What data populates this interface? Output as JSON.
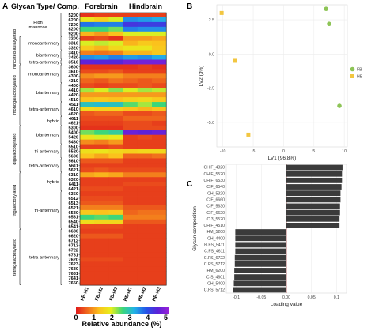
{
  "heatmap": {
    "panel": "A",
    "header_rowlabel": "Glycan Type/ Comp.",
    "header_groups": [
      "Forebrain",
      "Hindbrain"
    ],
    "columns": [
      "FB-M1",
      "FB-M2",
      "FB-M3",
      "HB-M1",
      "HB-M2",
      "HB-M3"
    ],
    "rows": [
      "5200",
      "6200",
      "7200",
      "8200",
      "9200",
      "3200",
      "3310",
      "3320",
      "3410",
      "3420",
      "3510",
      "3600",
      "3610",
      "4300",
      "4310",
      "4400",
      "4410",
      "4420",
      "4510",
      "4511",
      "4610",
      "4620",
      "4611",
      "4621",
      "5300",
      "5400",
      "5420",
      "5430",
      "5510",
      "5520",
      "5600",
      "5610",
      "5611",
      "5621",
      "6310",
      "6320",
      "6411",
      "6421",
      "6350",
      "6512",
      "6513",
      "6521",
      "6530",
      "6531",
      "6540",
      "6541",
      "6630",
      "6620",
      "6712",
      "6713",
      "6722",
      "6731",
      "7620",
      "7623",
      "7630",
      "7631",
      "7641",
      "7650"
    ],
    "values": [
      [
        0.2,
        0.3,
        0.3,
        0.3,
        0.3,
        0.3
      ],
      [
        1.8,
        1.5,
        2.0,
        3.5,
        3.4,
        3.3
      ],
      [
        3.7,
        3.6,
        3.6,
        4.3,
        4.2,
        4.2
      ],
      [
        2.6,
        2.6,
        2.4,
        3.6,
        3.5,
        3.5
      ],
      [
        1.2,
        1.0,
        1.3,
        2.0,
        2.0,
        2.0
      ],
      [
        0.3,
        0.4,
        0.2,
        1.0,
        1.0,
        1.1
      ],
      [
        2.0,
        2.1,
        2.0,
        1.2,
        1.4,
        1.3
      ],
      [
        1.4,
        1.2,
        1.6,
        1.8,
        1.8,
        1.4
      ],
      [
        0.8,
        0.7,
        0.8,
        1.2,
        1.2,
        1.4
      ],
      [
        3.5,
        3.4,
        3.6,
        3.4,
        3.5,
        3.3
      ],
      [
        4.6,
        4.5,
        4.5,
        4.8,
        4.8,
        4.8
      ],
      [
        0.2,
        0.2,
        0.2,
        0.2,
        0.3,
        0.2
      ],
      [
        0.4,
        0.4,
        0.5,
        0.3,
        0.3,
        0.3
      ],
      [
        0.9,
        1.0,
        1.0,
        0.8,
        0.8,
        0.8
      ],
      [
        0.6,
        0.5,
        0.7,
        0.6,
        0.5,
        0.6
      ],
      [
        0.4,
        0.3,
        0.4,
        0.4,
        0.5,
        0.4
      ],
      [
        2.2,
        2.0,
        2.3,
        2.0,
        2.2,
        2.1
      ],
      [
        1.0,
        1.0,
        1.0,
        1.0,
        1.0,
        1.0
      ],
      [
        1.3,
        1.4,
        1.3,
        1.5,
        1.6,
        1.4
      ],
      [
        3.0,
        3.1,
        3.0,
        2.5,
        2.2,
        2.6
      ],
      [
        1.6,
        1.5,
        1.5,
        1.3,
        1.2,
        1.3
      ],
      [
        0.5,
        0.6,
        0.6,
        0.4,
        0.4,
        0.5
      ],
      [
        0.4,
        0.4,
        0.4,
        0.6,
        0.6,
        0.6
      ],
      [
        0.3,
        0.3,
        0.3,
        0.4,
        0.4,
        0.3
      ],
      [
        0.2,
        0.2,
        0.2,
        0.4,
        0.4,
        0.4
      ],
      [
        2.4,
        2.6,
        2.8,
        4.7,
        4.6,
        4.7
      ],
      [
        1.8,
        2.0,
        1.9,
        0.3,
        0.4,
        0.3
      ],
      [
        0.9,
        0.8,
        1.0,
        0.3,
        0.3,
        0.3
      ],
      [
        0.3,
        0.3,
        0.4,
        0.3,
        0.3,
        0.3
      ],
      [
        1.7,
        1.8,
        1.6,
        1.5,
        1.6,
        1.6
      ],
      [
        1.3,
        1.1,
        1.3,
        0.6,
        0.6,
        0.7
      ],
      [
        0.5,
        0.5,
        0.5,
        0.3,
        0.3,
        0.3
      ],
      [
        0.3,
        0.3,
        0.3,
        0.3,
        0.3,
        0.3
      ],
      [
        0.4,
        0.5,
        0.4,
        0.4,
        0.4,
        0.4
      ],
      [
        1.1,
        1.2,
        1.1,
        0.8,
        0.8,
        0.8
      ],
      [
        0.3,
        0.3,
        0.3,
        0.3,
        0.3,
        0.3
      ],
      [
        0.3,
        0.3,
        0.3,
        0.4,
        0.4,
        0.4
      ],
      [
        0.4,
        0.4,
        0.4,
        0.3,
        0.3,
        0.3
      ],
      [
        0.3,
        0.3,
        0.3,
        0.3,
        0.3,
        0.3
      ],
      [
        0.4,
        0.4,
        0.4,
        0.3,
        0.3,
        0.3
      ],
      [
        0.5,
        0.5,
        0.5,
        0.3,
        0.3,
        0.3
      ],
      [
        0.8,
        0.8,
        0.8,
        0.5,
        0.5,
        0.5
      ],
      [
        1.4,
        1.3,
        1.4,
        0.6,
        0.7,
        0.7
      ],
      [
        2.6,
        2.5,
        2.6,
        0.8,
        0.8,
        0.8
      ],
      [
        1.7,
        1.6,
        1.6,
        0.5,
        0.5,
        0.5
      ],
      [
        0.4,
        0.4,
        0.4,
        0.3,
        0.3,
        0.3
      ],
      [
        0.3,
        0.3,
        0.3,
        0.3,
        0.3,
        0.3
      ],
      [
        0.5,
        0.5,
        0.5,
        0.3,
        0.3,
        0.3
      ],
      [
        0.3,
        0.3,
        0.3,
        0.3,
        0.3,
        0.3
      ],
      [
        0.3,
        0.3,
        0.3,
        0.3,
        0.3,
        0.3
      ],
      [
        0.3,
        0.3,
        0.3,
        0.3,
        0.3,
        0.3
      ],
      [
        0.3,
        0.3,
        0.3,
        0.3,
        0.3,
        0.3
      ],
      [
        0.4,
        0.4,
        0.4,
        0.3,
        0.3,
        0.3
      ],
      [
        0.3,
        0.3,
        0.3,
        0.3,
        0.3,
        0.3
      ],
      [
        0.3,
        0.3,
        0.3,
        0.3,
        0.3,
        0.3
      ],
      [
        0.3,
        0.3,
        0.3,
        0.3,
        0.3,
        0.3
      ],
      [
        0.3,
        0.3,
        0.3,
        0.3,
        0.3,
        0.3
      ],
      [
        0.3,
        0.3,
        0.3,
        0.3,
        0.3,
        0.3
      ]
    ],
    "subgroups": [
      {
        "label": "High mannose",
        "from": 0,
        "to": 4
      },
      {
        "label": "monoantennary",
        "from": 5,
        "to": 7
      },
      {
        "label": "biantennary",
        "from": 8,
        "to": 9
      },
      {
        "label": "tetra-antennary",
        "from": 10,
        "to": 10
      },
      {
        "label": "monoantennary",
        "from": 11,
        "to": 14
      },
      {
        "label": "biantennary",
        "from": 15,
        "to": 18
      },
      {
        "label": "tetra-antennary",
        "from": 19,
        "to": 21
      },
      {
        "label": "hybrid",
        "from": 22,
        "to": 23
      },
      {
        "label": "biantennary",
        "from": 24,
        "to": 27
      },
      {
        "label": "tri-antennary",
        "from": 28,
        "to": 30
      },
      {
        "label": "tetra-antennary",
        "from": 31,
        "to": 33
      },
      {
        "label": "hybrid",
        "from": 34,
        "to": 37
      },
      {
        "label": "tri-antennary",
        "from": 38,
        "to": 45
      },
      {
        "label": "tetra-antennary",
        "from": 46,
        "to": 57
      }
    ],
    "categories": [
      {
        "label": "Truncated asialylated",
        "from": 5,
        "to": 10
      },
      {
        "label": "monogalactosylated",
        "from": 11,
        "to": 23
      },
      {
        "label": "digalactosylated",
        "from": 24,
        "to": 33
      },
      {
        "label": "trigalactosylated",
        "from": 34,
        "to": 45
      },
      {
        "label": "tetragalactosylated",
        "from": 46,
        "to": 57
      }
    ],
    "colorbar": {
      "ticks": [
        0,
        1,
        2,
        3,
        4,
        5
      ],
      "title": "Relative abundance (%)"
    },
    "colors": [
      "#e0191b",
      "#f06b1c",
      "#fbc21c",
      "#e6f01c",
      "#3cd67a",
      "#21b3e6",
      "#2355e8",
      "#5a22d8",
      "#9b22d8"
    ]
  },
  "chart_data": [
    {
      "type": "scatter",
      "panel": "B",
      "xlabel": "LV1 (96.8%)",
      "ylabel": "LV2 (3%)",
      "xlim": [
        -11,
        10.5
      ],
      "ylim": [
        -6.8,
        3.6
      ],
      "xticks": [
        -10,
        -5,
        0,
        5,
        10
      ],
      "yticks": [
        2.5,
        0.0,
        -2.5,
        -5.0
      ],
      "series": [
        {
          "name": "FB",
          "color": "#8dc456",
          "x": [
            7.0,
            7.5,
            9.2
          ],
          "y": [
            3.3,
            2.2,
            -3.8
          ]
        },
        {
          "name": "HB",
          "color": "#f2c640",
          "x": [
            -10.2,
            -8.0,
            -5.8
          ],
          "y": [
            3.0,
            -0.5,
            -5.9
          ]
        }
      ],
      "legend": "right"
    },
    {
      "type": "bar",
      "panel": "C",
      "orientation": "horizontal",
      "xlabel": "Loading value",
      "ylabel": "Glycan composition",
      "xlim": [
        -0.12,
        0.12
      ],
      "xticks": [
        -0.1,
        -0.05,
        0.0,
        0.05,
        0.1
      ],
      "color": "#3b3b3b",
      "categories": [
        "CH.F_4320",
        "CH.F_5520",
        "CH.F_6530",
        "C.F_6540",
        "CH_5320",
        "C.F_6660",
        "C.F_5630",
        "C.F_6620",
        "C.3_5520",
        "CH.F_4510",
        "HM_5200",
        "CH_4400",
        "H.FS_5411",
        "C.FS_4611",
        "C.FS_6722",
        "C.FS_5712",
        "HM_6200",
        "C.S_4601",
        "CH_5400",
        "C.FS_5712"
      ],
      "values": [
        0.112,
        0.111,
        0.111,
        0.11,
        0.108,
        0.108,
        0.107,
        0.107,
        0.106,
        0.106,
        -0.102,
        -0.102,
        -0.102,
        -0.102,
        -0.103,
        -0.103,
        -0.104,
        -0.104,
        -0.105,
        -0.106
      ]
    }
  ]
}
